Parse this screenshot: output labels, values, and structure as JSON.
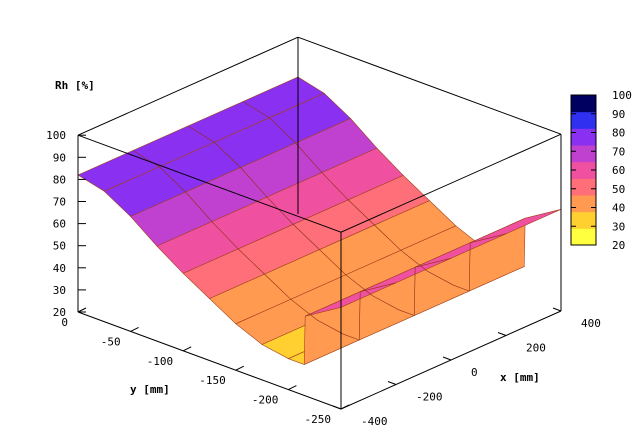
{
  "chart_data": {
    "type": "surface3d",
    "zlabel": "Rh [%]",
    "xlabel": "x [mm]",
    "ylabel": "y [mm]",
    "zlim": [
      20,
      100
    ],
    "z_ticks": [
      "20",
      "30",
      "40",
      "50",
      "60",
      "70",
      "80",
      "90",
      "100"
    ],
    "x_ticks": [
      "-400",
      "-200",
      "0",
      "200",
      "400"
    ],
    "y_ticks": [
      "0",
      "-50",
      "-100",
      "-150",
      "-200",
      "-250"
    ],
    "colorbar": {
      "range": [
        20,
        100
      ],
      "ticks": [
        "20",
        "30",
        "40",
        "50",
        "60",
        "70",
        "80",
        "90",
        "100"
      ],
      "colors": [
        "#ffff40",
        "#ffd030",
        "#ff9a50",
        "#ff6f7a",
        "#f050a0",
        "#c040d0",
        "#8a30f0",
        "#3030f0",
        "#000060"
      ]
    },
    "surface": {
      "y": [
        0,
        -25,
        -50,
        -75,
        -100,
        -125,
        -150,
        -175,
        -200,
        -215,
        -216,
        -250
      ],
      "rh": [
        82,
        79,
        72,
        63,
        55,
        48,
        41,
        36,
        34,
        34,
        56,
        66
      ]
    }
  }
}
